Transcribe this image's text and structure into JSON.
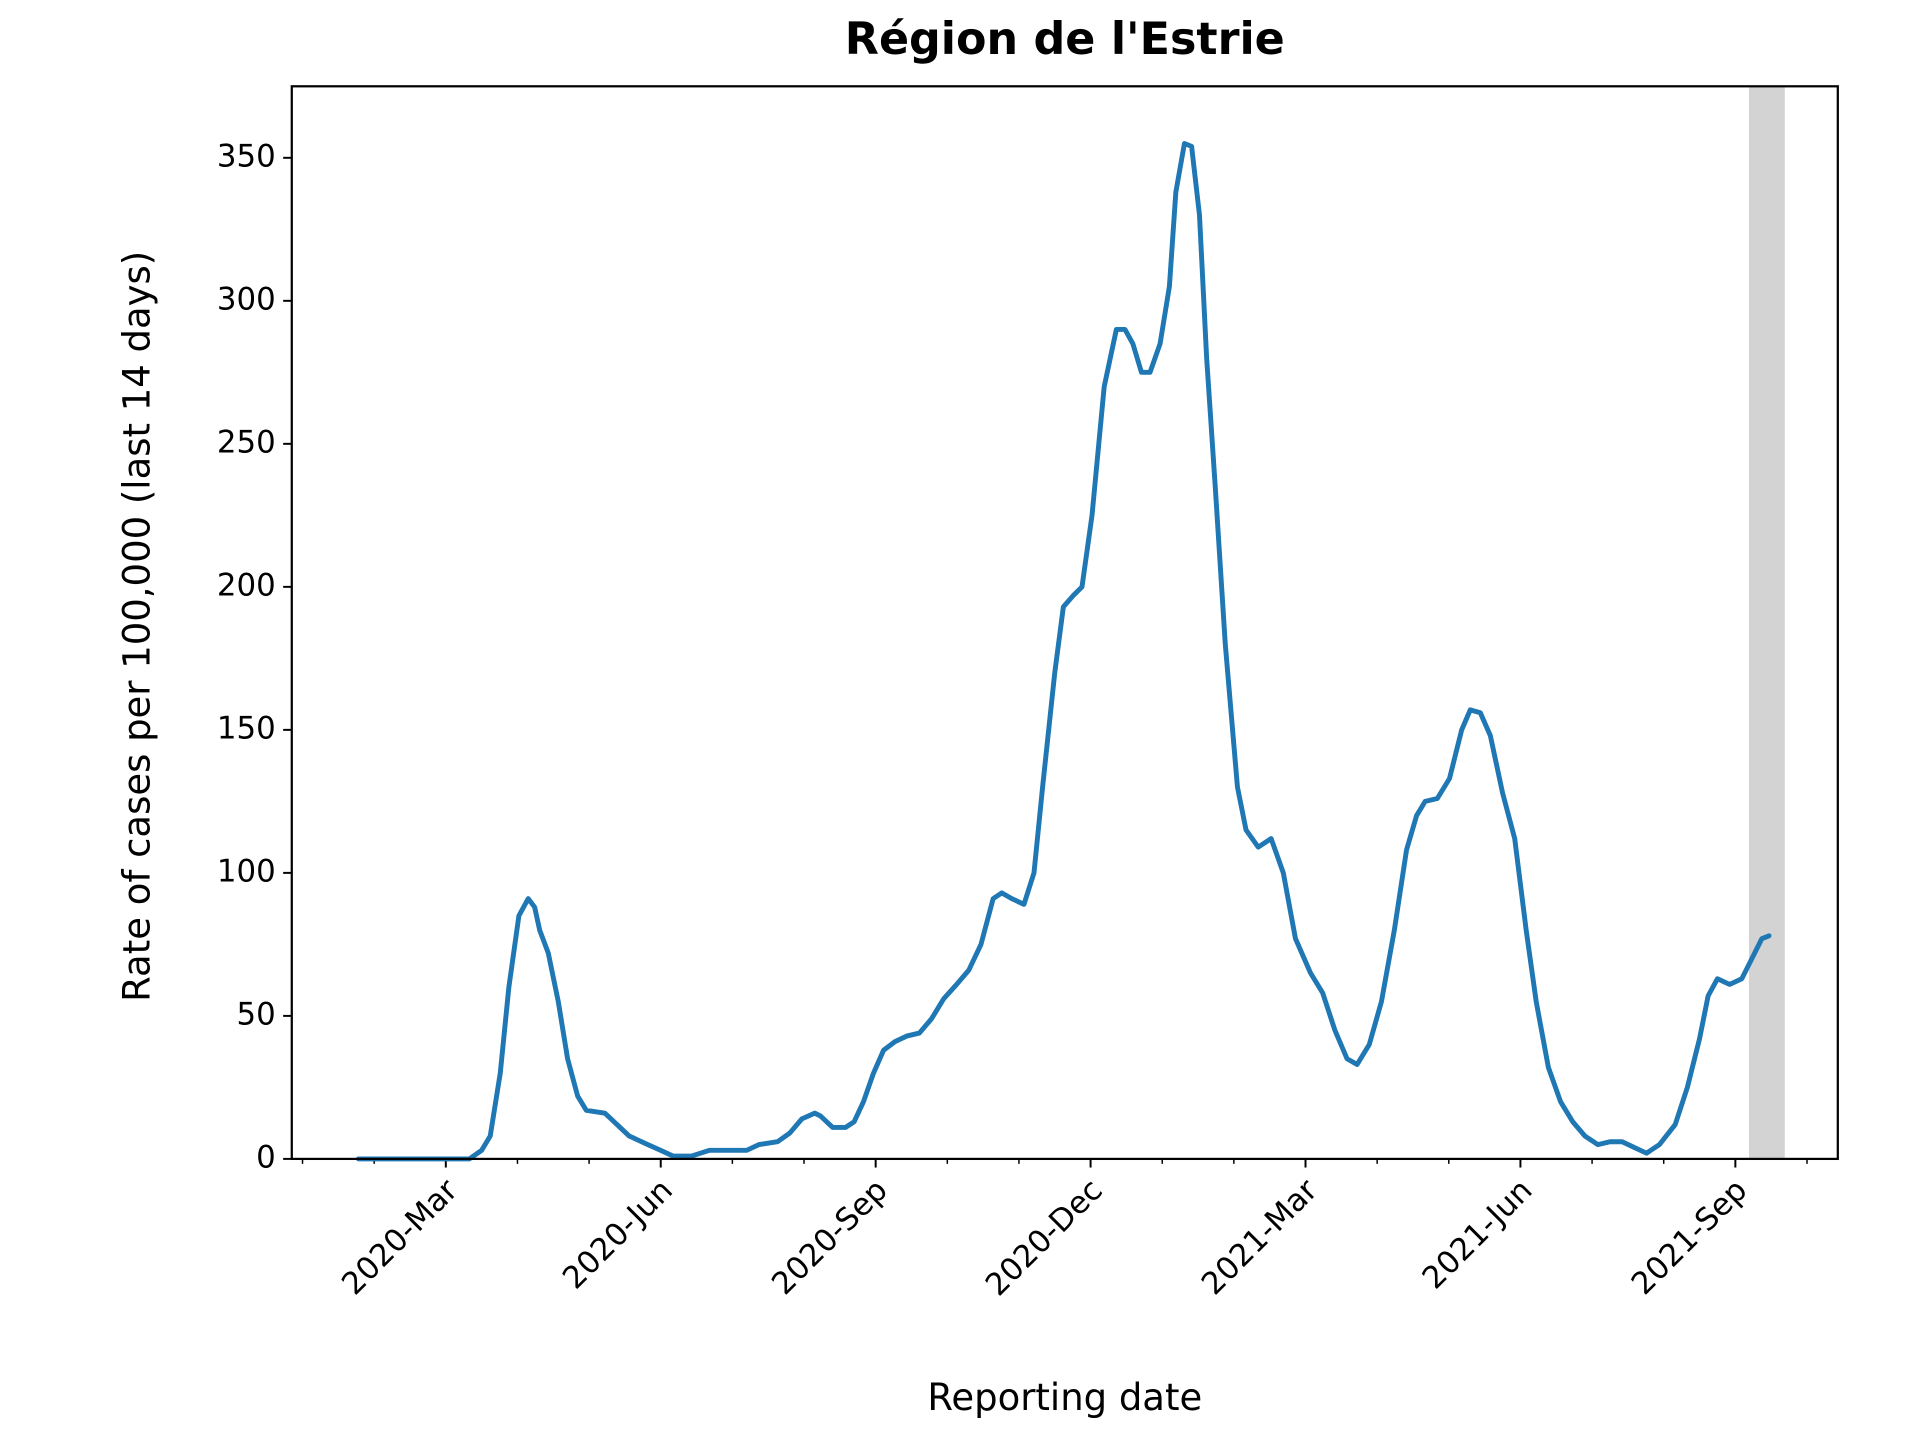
{
  "chart_data": {
    "type": "line",
    "title": "Région de l'Estrie",
    "x_label": "Reporting date",
    "y_label": "Rate of cases per 100,000 (last 14 days)",
    "xlim": [
      0.85,
      22.43
    ],
    "ylim": [
      0,
      375
    ],
    "xticks": [
      {
        "value": 3,
        "label": "2020-Mar"
      },
      {
        "value": 6,
        "label": "2020-Jun"
      },
      {
        "value": 9,
        "label": "2020-Sep"
      },
      {
        "value": 12,
        "label": "2020-Dec"
      },
      {
        "value": 15,
        "label": "2021-Mar"
      },
      {
        "value": 18,
        "label": "2021-Jun"
      },
      {
        "value": 21,
        "label": "2021-Sep"
      }
    ],
    "xminorticks": [
      1,
      2,
      4,
      5,
      7,
      8,
      10,
      11,
      13,
      14,
      16,
      17,
      19,
      20,
      22
    ],
    "yticks": [
      0,
      50,
      100,
      150,
      200,
      250,
      300,
      350
    ],
    "shaded_span": [
      21.19,
      21.69
    ],
    "shaded_color": "#d3d3d3",
    "series": [
      {
        "color": "#1f77b4",
        "x": [
          1.78,
          3.33,
          3.5,
          3.62,
          3.76,
          3.88,
          4.02,
          4.15,
          4.24,
          4.31,
          4.43,
          4.57,
          4.7,
          4.84,
          4.96,
          5.22,
          5.39,
          5.56,
          5.82,
          6.0,
          6.17,
          6.43,
          6.68,
          6.94,
          7.2,
          7.37,
          7.63,
          7.8,
          7.97,
          8.15,
          8.23,
          8.4,
          8.58,
          8.7,
          8.83,
          8.97,
          9.11,
          9.27,
          9.44,
          9.61,
          9.78,
          9.95,
          10.13,
          10.3,
          10.47,
          10.64,
          10.76,
          10.9,
          11.07,
          11.21,
          11.33,
          11.5,
          11.62,
          11.76,
          11.88,
          12.02,
          12.19,
          12.36,
          12.48,
          12.59,
          12.71,
          12.83,
          12.97,
          13.1,
          13.19,
          13.31,
          13.41,
          13.52,
          13.62,
          13.74,
          13.88,
          14.05,
          14.17,
          14.34,
          14.52,
          14.69,
          14.86,
          15.07,
          15.24,
          15.41,
          15.58,
          15.72,
          15.89,
          16.06,
          16.24,
          16.41,
          16.55,
          16.67,
          16.84,
          17.01,
          17.18,
          17.3,
          17.44,
          17.58,
          17.75,
          17.92,
          18.08,
          18.22,
          18.39,
          18.56,
          18.73,
          18.9,
          19.08,
          19.25,
          19.42,
          19.59,
          19.76,
          19.94,
          20.16,
          20.33,
          20.5,
          20.62,
          20.75,
          20.92,
          21.09,
          21.23,
          21.37,
          21.47
        ],
        "values": [
          0,
          0,
          3,
          8,
          30,
          60,
          85,
          91,
          88,
          80,
          72,
          55,
          35,
          22,
          17,
          16,
          12,
          8,
          5,
          3,
          1,
          1,
          3,
          3,
          3,
          5,
          6,
          9,
          14,
          16,
          15,
          11,
          11,
          13,
          20,
          30,
          38,
          41,
          43,
          44,
          49,
          56,
          61,
          66,
          75,
          91,
          93,
          91,
          89,
          100,
          130,
          170,
          193,
          197,
          200,
          225,
          270,
          290,
          290,
          285,
          275,
          275,
          285,
          305,
          338,
          355,
          354,
          330,
          280,
          235,
          180,
          130,
          115,
          109,
          112,
          100,
          77,
          65,
          58,
          45,
          35,
          33,
          40,
          55,
          80,
          108,
          120,
          125,
          126,
          133,
          150,
          157,
          156,
          148,
          128,
          112,
          80,
          55,
          32,
          20,
          13,
          8,
          5,
          6,
          6,
          4,
          2,
          5,
          12,
          25,
          42,
          57,
          63,
          61,
          63,
          70,
          77,
          78
        ]
      }
    ]
  }
}
